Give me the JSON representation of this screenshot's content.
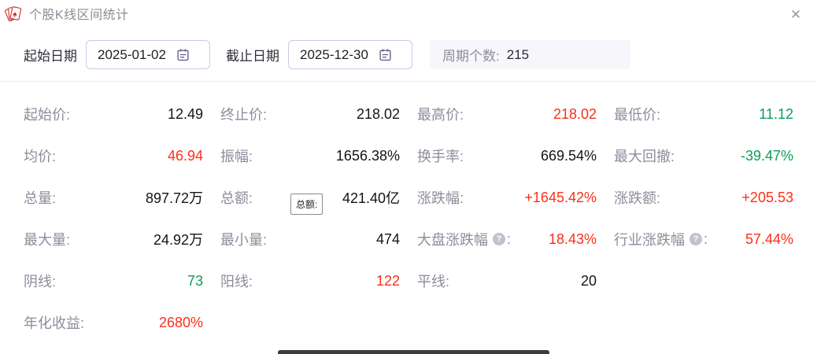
{
  "window": {
    "title": "个股K线区间统计"
  },
  "icons": {
    "app": "poker-cards-icon",
    "close_glyph": "✕",
    "help_glyph": "?"
  },
  "controls": {
    "start_date": {
      "label": "起始日期",
      "value": "2025-01-02"
    },
    "end_date": {
      "label": "截止日期",
      "value": "2025-12-30"
    },
    "period": {
      "label": "周期个数:",
      "value": "215"
    }
  },
  "tooltip": {
    "text": "总额:"
  },
  "colors": {
    "red": "#fb2f17",
    "green": "#0b9d58",
    "label_gray": "#8d8d9c",
    "value_dark": "#141414",
    "title_gray": "#8b8b96",
    "input_border": "#cdc9e6",
    "pill_bg": "#f6f6fb"
  },
  "stats_rows": [
    [
      {
        "label": "起始价:",
        "value": "12.49",
        "color": "default"
      },
      {
        "label": "终止价:",
        "value": "218.02",
        "color": "default"
      },
      {
        "label": "最高价:",
        "value": "218.02",
        "color": "red"
      },
      {
        "label": "最低价:",
        "value": "11.12",
        "color": "green"
      }
    ],
    [
      {
        "label": "均价:",
        "value": "46.94",
        "color": "red"
      },
      {
        "label": "振幅:",
        "value": "1656.38%",
        "color": "default"
      },
      {
        "label": "换手率:",
        "value": "669.54%",
        "color": "default"
      },
      {
        "label": "最大回撤:",
        "value": "-39.47%",
        "color": "green"
      }
    ],
    [
      {
        "label": "总量:",
        "value": "897.72万",
        "color": "default"
      },
      {
        "label": "总额:",
        "value": "421.40亿",
        "color": "default"
      },
      {
        "label": "涨跌幅:",
        "value": "+1645.42%",
        "color": "red"
      },
      {
        "label": "涨跌额:",
        "value": "+205.53",
        "color": "red"
      }
    ],
    [
      {
        "label": "最大量:",
        "value": "24.92万",
        "color": "default"
      },
      {
        "label": "最小量:",
        "value": "474",
        "color": "default"
      },
      {
        "label": "大盘涨跌幅",
        "colon": ":",
        "value": "18.43%",
        "color": "red",
        "help": true
      },
      {
        "label": "行业涨跌幅",
        "colon": ":",
        "value": "57.44%",
        "color": "red",
        "help": true
      }
    ],
    [
      {
        "label": "阴线:",
        "value": "73",
        "color": "green"
      },
      {
        "label": "阳线:",
        "value": "122",
        "color": "red"
      },
      {
        "label": "平线:",
        "value": "20",
        "color": "default"
      },
      null
    ],
    [
      {
        "label": "年化收益:",
        "value": "2680%",
        "color": "red"
      },
      null,
      null,
      null
    ]
  ]
}
